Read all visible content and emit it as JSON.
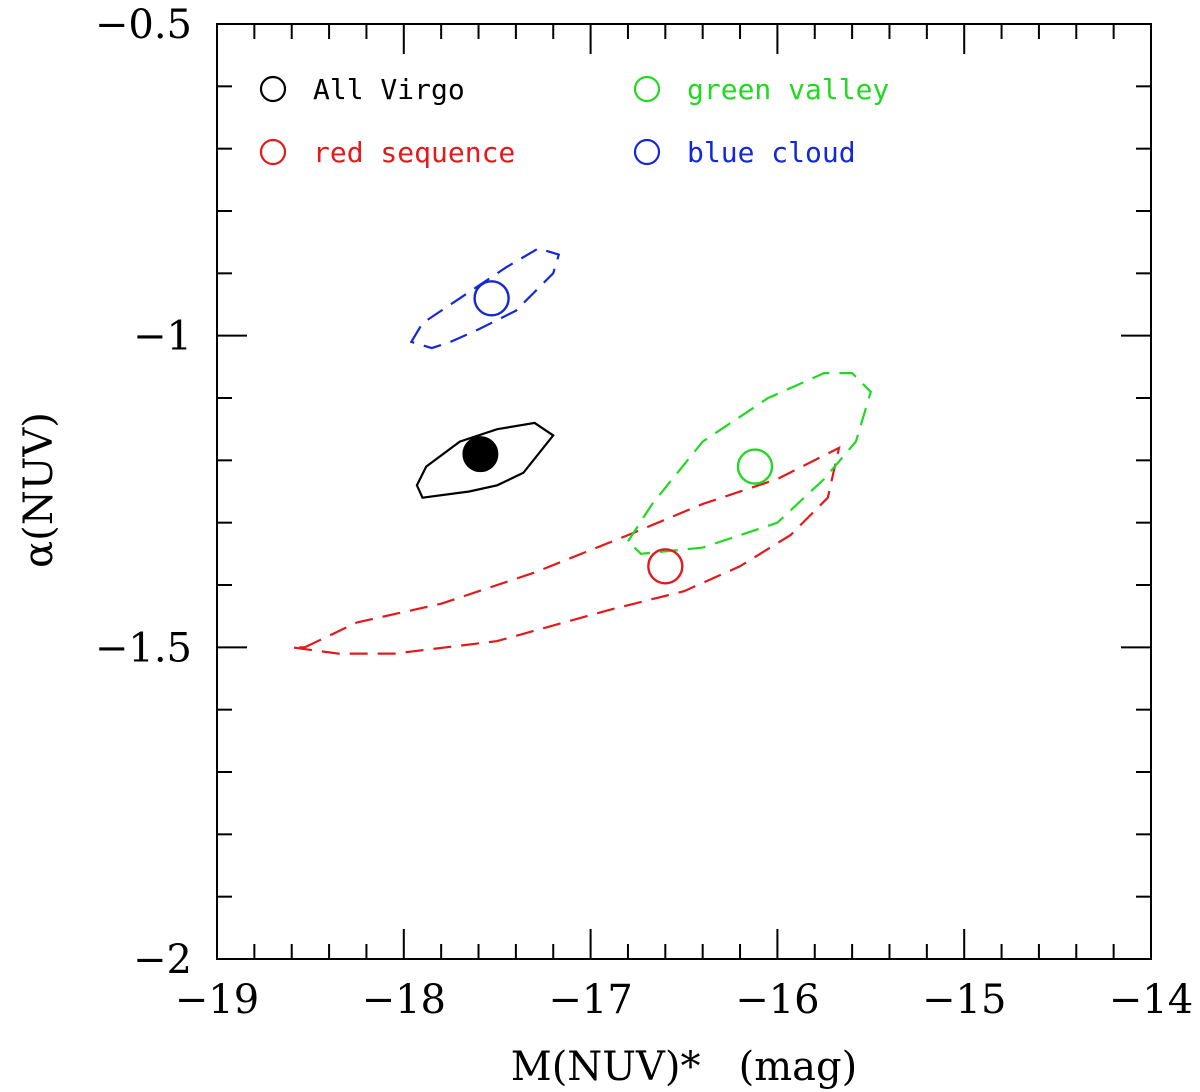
{
  "chart_data": {
    "type": "scatter",
    "xlabel": "M(NUV)*   (mag)",
    "ylabel": "α(NUV)",
    "xlim": [
      -19,
      -14
    ],
    "ylim": [
      -2,
      -0.5
    ],
    "x_major_ticks": [
      -19,
      -18,
      -17,
      -16,
      -15,
      -14
    ],
    "x_tick_labels": [
      "−19",
      "−18",
      "−17",
      "−16",
      "−15",
      "−14"
    ],
    "y_major_ticks": [
      -2,
      -1.5,
      -1,
      -0.5
    ],
    "y_tick_labels": [
      "−2",
      "−1.5",
      "−1",
      "−0.5"
    ],
    "grid": false,
    "legend_position": "top-left",
    "series": [
      {
        "name": "All Virgo",
        "color": "#000000",
        "marker": "filled-circle",
        "contour_style": "solid",
        "best_fit": {
          "x": -17.59,
          "y": -1.19
        },
        "contour": [
          [
            -17.93,
            -1.24
          ],
          [
            -17.88,
            -1.21
          ],
          [
            -17.7,
            -1.17
          ],
          [
            -17.5,
            -1.15
          ],
          [
            -17.3,
            -1.14
          ],
          [
            -17.2,
            -1.16
          ],
          [
            -17.36,
            -1.22
          ],
          [
            -17.5,
            -1.24
          ],
          [
            -17.65,
            -1.25
          ],
          [
            -17.9,
            -1.26
          ]
        ]
      },
      {
        "name": "red sequence",
        "color": "#e31a1c",
        "marker": "open-circle",
        "contour_style": "dashed",
        "best_fit": {
          "x": -16.6,
          "y": -1.37
        },
        "contour": [
          [
            -18.53,
            -1.5
          ],
          [
            -18.25,
            -1.46
          ],
          [
            -17.8,
            -1.43
          ],
          [
            -17.3,
            -1.38
          ],
          [
            -16.8,
            -1.32
          ],
          [
            -16.4,
            -1.27
          ],
          [
            -16,
            -1.23
          ],
          [
            -15.67,
            -1.18
          ],
          [
            -15.73,
            -1.26
          ],
          [
            -15.93,
            -1.32
          ],
          [
            -16.2,
            -1.37
          ],
          [
            -16.5,
            -1.41
          ],
          [
            -16.9,
            -1.44
          ],
          [
            -17.5,
            -1.49
          ],
          [
            -18.05,
            -1.51
          ],
          [
            -18.35,
            -1.51
          ],
          [
            -18.6,
            -1.5
          ]
        ]
      },
      {
        "name": "green valley",
        "color": "#22d822",
        "marker": "open-circle",
        "contour_style": "dashed",
        "best_fit": {
          "x": -16.12,
          "y": -1.21
        },
        "contour": [
          [
            -16.8,
            -1.33
          ],
          [
            -16.67,
            -1.27
          ],
          [
            -16.4,
            -1.17
          ],
          [
            -16.05,
            -1.1
          ],
          [
            -15.75,
            -1.06
          ],
          [
            -15.6,
            -1.06
          ],
          [
            -15.5,
            -1.09
          ],
          [
            -15.58,
            -1.17
          ],
          [
            -15.75,
            -1.23
          ],
          [
            -16.0,
            -1.3
          ],
          [
            -16.4,
            -1.34
          ],
          [
            -16.73,
            -1.35
          ],
          [
            -16.8,
            -1.33
          ]
        ]
      },
      {
        "name": "blue cloud",
        "color": "#1428d8",
        "marker": "open-circle",
        "contour_style": "dashed",
        "best_fit": {
          "x": -17.53,
          "y": -0.94
        },
        "contour": [
          [
            -17.96,
            -1.01
          ],
          [
            -17.9,
            -0.98
          ],
          [
            -17.7,
            -0.94
          ],
          [
            -17.45,
            -0.89
          ],
          [
            -17.28,
            -0.86
          ],
          [
            -17.17,
            -0.87
          ],
          [
            -17.2,
            -0.9
          ],
          [
            -17.4,
            -0.96
          ],
          [
            -17.6,
            -0.99
          ],
          [
            -17.75,
            -1.01
          ],
          [
            -17.85,
            -1.02
          ],
          [
            -17.96,
            -1.01
          ]
        ]
      }
    ]
  }
}
